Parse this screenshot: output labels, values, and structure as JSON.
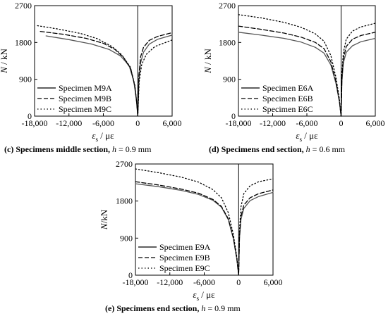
{
  "chart_data": [
    {
      "id": "c",
      "type": "line",
      "caption_letter": "(c)",
      "caption_text": " Specimens middle section, ",
      "caption_param": "h",
      "caption_value": " = 0.9 mm",
      "xlabel_symbol": "ε",
      "xlabel_sub": "s",
      "xlabel_unit": " / με",
      "ylabel_symbol": "N",
      "ylabel_unit": " / kN",
      "xlim": [
        -18000,
        6000
      ],
      "ylim": [
        0,
        2700
      ],
      "xticks": [
        -18000,
        -12000,
        -6000,
        0,
        6000
      ],
      "xtick_labels": [
        "-18,000",
        "-12,000",
        "-6,000",
        "0",
        "6,000"
      ],
      "yticks": [
        0,
        900,
        1800,
        2700
      ],
      "ytick_labels": [
        "0",
        "900",
        "1800",
        "2700"
      ],
      "legend_position": "bottom-left",
      "series": [
        {
          "name": "Specimen M9A",
          "style": "solid",
          "color": "#555555",
          "points": [
            [
              -16000,
              1960
            ],
            [
              -12000,
              1870
            ],
            [
              -8000,
              1760
            ],
            [
              -5000,
              1630
            ],
            [
              -3000,
              1470
            ],
            [
              -1500,
              1230
            ],
            [
              -700,
              860
            ],
            [
              -250,
              420
            ],
            [
              0,
              0
            ],
            [
              200,
              900
            ],
            [
              500,
              1300
            ],
            [
              1000,
              1560
            ],
            [
              2000,
              1760
            ],
            [
              3500,
              1880
            ],
            [
              6000,
              1980
            ]
          ]
        },
        {
          "name": "Specimen M9B",
          "style": "dashed",
          "color": "#000000",
          "points": [
            [
              -17000,
              2070
            ],
            [
              -13000,
              2000
            ],
            [
              -9000,
              1900
            ],
            [
              -6000,
              1780
            ],
            [
              -4000,
              1630
            ],
            [
              -2500,
              1440
            ],
            [
              -1200,
              1150
            ],
            [
              -500,
              720
            ],
            [
              -150,
              300
            ],
            [
              0,
              0
            ],
            [
              200,
              1000
            ],
            [
              500,
              1450
            ],
            [
              1000,
              1680
            ],
            [
              2000,
              1850
            ],
            [
              3500,
              1950
            ],
            [
              6000,
              2040
            ]
          ]
        },
        {
          "name": "Specimen M9C",
          "style": "dotted",
          "color": "#000000",
          "points": [
            [
              -17500,
              2210
            ],
            [
              -14000,
              2130
            ],
            [
              -10000,
              2020
            ],
            [
              -7000,
              1890
            ],
            [
              -4500,
              1700
            ],
            [
              -2800,
              1500
            ],
            [
              -1300,
              1200
            ],
            [
              -500,
              750
            ],
            [
              -150,
              300
            ],
            [
              0,
              0
            ],
            [
              250,
              850
            ],
            [
              700,
              1260
            ],
            [
              1500,
              1510
            ],
            [
              3000,
              1700
            ],
            [
              6000,
              1860
            ]
          ]
        }
      ]
    },
    {
      "id": "d",
      "type": "line",
      "caption_letter": "(d)",
      "caption_text": " Specimens end section, ",
      "caption_param": "h",
      "caption_value": " = 0.6 mm",
      "xlabel_symbol": "ε",
      "xlabel_sub": "s",
      "xlabel_unit": " / με",
      "ylabel_symbol": "N",
      "ylabel_unit": " / kN",
      "xlim": [
        -18000,
        6000
      ],
      "ylim": [
        0,
        2700
      ],
      "xticks": [
        -18000,
        -12000,
        -6000,
        0,
        6000
      ],
      "xtick_labels": [
        "-18,000",
        "-12,000",
        "-6,000",
        "0",
        "6,000"
      ],
      "yticks": [
        0,
        900,
        1800,
        2700
      ],
      "ytick_labels": [
        "0",
        "900",
        "1800",
        "2700"
      ],
      "legend_position": "bottom-left",
      "series": [
        {
          "name": "Specimen E6A",
          "style": "solid",
          "color": "#555555",
          "points": [
            [
              -18000,
              2050
            ],
            [
              -14000,
              1980
            ],
            [
              -10000,
              1900
            ],
            [
              -7000,
              1810
            ],
            [
              -4500,
              1680
            ],
            [
              -3000,
              1540
            ],
            [
              -1800,
              1250
            ],
            [
              -900,
              800
            ],
            [
              -300,
              350
            ],
            [
              0,
              0
            ],
            [
              150,
              850
            ],
            [
              400,
              1300
            ],
            [
              900,
              1560
            ],
            [
              2000,
              1720
            ],
            [
              3500,
              1820
            ],
            [
              6000,
              1900
            ]
          ]
        },
        {
          "name": "Specimen E6B",
          "style": "dashed",
          "color": "#000000",
          "points": [
            [
              -18000,
              2200
            ],
            [
              -14000,
              2120
            ],
            [
              -10000,
              2030
            ],
            [
              -7000,
              1930
            ],
            [
              -4500,
              1800
            ],
            [
              -3000,
              1650
            ],
            [
              -1800,
              1330
            ],
            [
              -900,
              850
            ],
            [
              -300,
              380
            ],
            [
              0,
              0
            ],
            [
              150,
              950
            ],
            [
              400,
              1400
            ],
            [
              900,
              1700
            ],
            [
              2000,
              1880
            ],
            [
              3500,
              1970
            ],
            [
              6000,
              2050
            ]
          ]
        },
        {
          "name": "Specimen E6C",
          "style": "dotted",
          "color": "#000000",
          "points": [
            [
              -18000,
              2480
            ],
            [
              -14000,
              2400
            ],
            [
              -10000,
              2290
            ],
            [
              -7000,
              2170
            ],
            [
              -4500,
              2010
            ],
            [
              -3000,
              1830
            ],
            [
              -1800,
              1480
            ],
            [
              -900,
              950
            ],
            [
              -300,
              420
            ],
            [
              0,
              0
            ],
            [
              150,
              1050
            ],
            [
              400,
              1550
            ],
            [
              900,
              1880
            ],
            [
              2000,
              2080
            ],
            [
              3500,
              2180
            ],
            [
              6000,
              2270
            ]
          ]
        }
      ]
    },
    {
      "id": "e",
      "type": "line",
      "caption_letter": "(e)",
      "caption_text": " Specimens end section, ",
      "caption_param": "h",
      "caption_value": " = 0.9 mm",
      "xlabel_symbol": "ε",
      "xlabel_sub": "s",
      "xlabel_unit": " / με",
      "ylabel_symbol": "N",
      "ylabel_unit": "/kN",
      "xlim": [
        -18000,
        6000
      ],
      "ylim": [
        0,
        2700
      ],
      "xticks": [
        -18000,
        -12000,
        -6000,
        0,
        6000
      ],
      "xtick_labels": [
        "-18,000",
        "-12,000",
        "-6,000",
        "0",
        "6,000"
      ],
      "yticks": [
        0,
        900,
        1800,
        2700
      ],
      "ytick_labels": [
        "0",
        "900",
        "1800",
        "2700"
      ],
      "legend_position": "bottom-left",
      "series": [
        {
          "name": "Specimen E9A",
          "style": "solid",
          "color": "#555555",
          "points": [
            [
              -18000,
              2220
            ],
            [
              -14000,
              2150
            ],
            [
              -10000,
              2060
            ],
            [
              -7000,
              1960
            ],
            [
              -4500,
              1820
            ],
            [
              -3000,
              1650
            ],
            [
              -1800,
              1350
            ],
            [
              -900,
              880
            ],
            [
              -300,
              380
            ],
            [
              0,
              0
            ],
            [
              150,
              900
            ],
            [
              400,
              1350
            ],
            [
              900,
              1620
            ],
            [
              2000,
              1810
            ],
            [
              3500,
              1910
            ],
            [
              6000,
              2010
            ]
          ]
        },
        {
          "name": "Specimen E9B",
          "style": "dashed",
          "color": "#000000",
          "points": [
            [
              -18000,
              2270
            ],
            [
              -14000,
              2190
            ],
            [
              -10000,
              2090
            ],
            [
              -7000,
              1990
            ],
            [
              -4500,
              1840
            ],
            [
              -3000,
              1670
            ],
            [
              -1800,
              1370
            ],
            [
              -900,
              900
            ],
            [
              -300,
              390
            ],
            [
              0,
              0
            ],
            [
              150,
              950
            ],
            [
              400,
              1420
            ],
            [
              900,
              1700
            ],
            [
              2000,
              1880
            ],
            [
              3500,
              1980
            ],
            [
              6000,
              2070
            ]
          ]
        },
        {
          "name": "Specimen E9C",
          "style": "dotted",
          "color": "#000000",
          "points": [
            [
              -18000,
              2580
            ],
            [
              -14000,
              2490
            ],
            [
              -10000,
              2380
            ],
            [
              -7000,
              2260
            ],
            [
              -4500,
              2080
            ],
            [
              -3000,
              1880
            ],
            [
              -1800,
              1520
            ],
            [
              -900,
              980
            ],
            [
              -300,
              430
            ],
            [
              0,
              0
            ],
            [
              150,
              1100
            ],
            [
              400,
              1650
            ],
            [
              900,
              1980
            ],
            [
              2000,
              2170
            ],
            [
              3500,
              2270
            ],
            [
              6000,
              2340
            ]
          ]
        }
      ]
    }
  ]
}
